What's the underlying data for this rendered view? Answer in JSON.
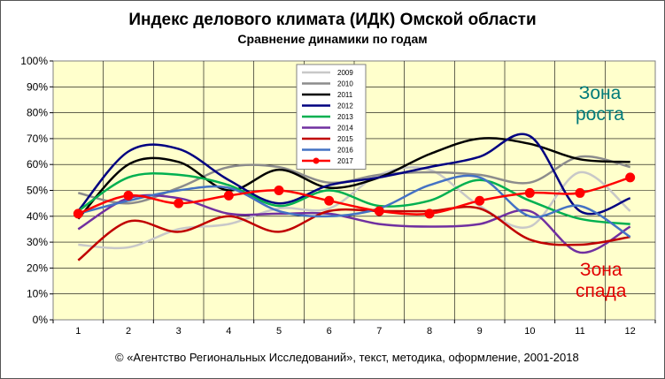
{
  "chart_data": {
    "type": "line",
    "title": "Индекс делового климата (ИДК) Омской области",
    "subtitle": "Сравнение динамики  по годам",
    "x": [
      1,
      2,
      3,
      4,
      5,
      6,
      7,
      8,
      9,
      10,
      11,
      12
    ],
    "x_ticks": [
      "1",
      "2",
      "3",
      "4",
      "5",
      "6",
      "7",
      "8",
      "9",
      "10",
      "11",
      "12"
    ],
    "y_ticks": [
      "0%",
      "10%",
      "20%",
      "30%",
      "40%",
      "50%",
      "60%",
      "70%",
      "80%",
      "90%",
      "100%"
    ],
    "ylim": [
      0,
      100
    ],
    "grid": true,
    "legend_position": "top-center",
    "series": [
      {
        "name": "2009",
        "color": "#c8c8c8",
        "values": [
          29,
          28,
          35,
          37,
          43,
          43,
          56,
          58,
          44,
          36,
          57,
          42
        ]
      },
      {
        "name": "2010",
        "color": "#8c8c8c",
        "values": [
          49,
          45,
          51,
          59,
          59,
          53,
          56,
          57,
          56,
          53,
          63,
          59
        ]
      },
      {
        "name": "2011",
        "color": "#000000",
        "values": [
          39,
          60,
          61,
          50,
          58,
          51,
          55,
          64,
          70,
          68,
          62,
          61
        ]
      },
      {
        "name": "2012",
        "color": "#000080",
        "values": [
          42,
          65,
          66,
          54,
          45,
          52,
          55,
          59,
          63,
          71,
          42,
          47
        ]
      },
      {
        "name": "2013",
        "color": "#00b050",
        "values": [
          42,
          55,
          56,
          52,
          44,
          50,
          44,
          46,
          54,
          46,
          39,
          37
        ]
      },
      {
        "name": "2014",
        "color": "#7030a0",
        "values": [
          35,
          47,
          47,
          41,
          41,
          41,
          37,
          36,
          37,
          42,
          26,
          36
        ]
      },
      {
        "name": "2015",
        "color": "#c00000",
        "values": [
          23,
          38,
          34,
          40,
          34,
          42,
          42,
          42,
          43,
          31,
          29,
          32
        ]
      },
      {
        "name": "2016",
        "color": "#4472c4",
        "values": [
          41,
          46,
          50,
          51,
          42,
          40,
          43,
          52,
          55,
          40,
          44,
          32
        ]
      },
      {
        "name": "2017",
        "color": "#ff0000",
        "values": [
          41,
          48,
          45,
          48,
          50,
          46,
          42,
          41,
          46,
          49,
          49,
          55
        ],
        "markers": true
      }
    ],
    "annotations": [
      {
        "text": "Зона\nроста",
        "color": "#007a7a"
      },
      {
        "text": "Зона\nспада",
        "color": "#e20000"
      }
    ]
  },
  "footer": "© «Агентство Региональных  Исследований»,  текст, методика, оформление,  2001-2018",
  "zone_up": [
    "Зона",
    "роста"
  ],
  "zone_down": [
    "Зона",
    "спада"
  ]
}
